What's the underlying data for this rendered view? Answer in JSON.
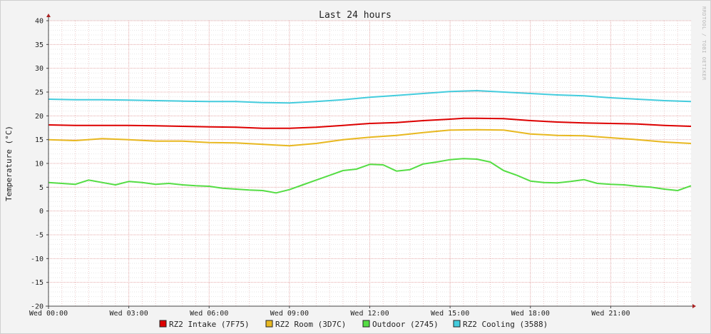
{
  "chart_data": {
    "type": "line",
    "title": "Last 24 hours",
    "ylabel": "Temperature (°C)",
    "xlabel": "",
    "ylim": [
      -20,
      40
    ],
    "yticks": [
      40,
      35,
      30,
      25,
      20,
      15,
      10,
      5,
      0,
      -5,
      -10,
      -15,
      -20
    ],
    "xlim": [
      0,
      24
    ],
    "xtick_positions": [
      0,
      3,
      6,
      9,
      12,
      15,
      18,
      21
    ],
    "xtick_labels": [
      "Wed 00:00",
      "Wed 03:00",
      "Wed 06:00",
      "Wed 09:00",
      "Wed 12:00",
      "Wed 15:00",
      "Wed 18:00",
      "Wed 21:00"
    ],
    "grid": true,
    "legend_position": "bottom",
    "watermark": "RRDTOOL / TOBI OETIKER",
    "series": [
      {
        "name": "RZ2 Intake (7F75)",
        "color": "#dd0000",
        "x": [
          0,
          1,
          2,
          3,
          4,
          5,
          6,
          7,
          8,
          9,
          10,
          11,
          12,
          13,
          14,
          15,
          15.5,
          16,
          17,
          18,
          19,
          20,
          21,
          22,
          23,
          24
        ],
        "values": [
          18.1,
          18.0,
          18.0,
          18.0,
          17.9,
          17.8,
          17.7,
          17.6,
          17.4,
          17.4,
          17.6,
          18.0,
          18.4,
          18.6,
          19.0,
          19.3,
          19.5,
          19.5,
          19.4,
          19.0,
          18.7,
          18.5,
          18.4,
          18.3,
          18.0,
          17.8
        ]
      },
      {
        "name": "RZ2 Room (3D7C)",
        "color": "#e8b820",
        "x": [
          0,
          1,
          2,
          3,
          4,
          5,
          6,
          7,
          8,
          9,
          10,
          11,
          12,
          13,
          14,
          15,
          16,
          17,
          18,
          19,
          20,
          21,
          22,
          23,
          24
        ],
        "values": [
          15.0,
          14.8,
          15.2,
          15.0,
          14.7,
          14.7,
          14.4,
          14.3,
          14.0,
          13.7,
          14.2,
          15.0,
          15.5,
          15.9,
          16.5,
          17.0,
          17.1,
          17.0,
          16.2,
          15.9,
          15.8,
          15.4,
          15.0,
          14.5,
          14.2
        ]
      },
      {
        "name": "Outdoor (2745)",
        "color": "#55dd44",
        "x": [
          0,
          0.5,
          1,
          1.5,
          2,
          2.5,
          3,
          3.5,
          4,
          4.5,
          5,
          5.5,
          6,
          6.5,
          7,
          7.5,
          8,
          8.5,
          9,
          9.5,
          10,
          10.5,
          11,
          11.5,
          12,
          12.5,
          13,
          13.5,
          14,
          14.5,
          15,
          15.5,
          16,
          16.5,
          17,
          17.5,
          18,
          18.5,
          19,
          19.5,
          20,
          20.5,
          21,
          21.5,
          22,
          22.5,
          23,
          23.5,
          24
        ],
        "values": [
          6.0,
          5.8,
          5.6,
          6.5,
          6.0,
          5.5,
          6.2,
          6.0,
          5.6,
          5.8,
          5.5,
          5.3,
          5.2,
          4.8,
          4.6,
          4.4,
          4.3,
          3.8,
          4.5,
          5.5,
          6.5,
          7.5,
          8.5,
          8.8,
          9.8,
          9.7,
          8.4,
          8.7,
          9.9,
          10.3,
          10.8,
          11.0,
          10.9,
          10.3,
          8.5,
          7.5,
          6.3,
          6.0,
          5.9,
          6.2,
          6.6,
          5.8,
          5.6,
          5.5,
          5.2,
          5.0,
          4.6,
          4.3,
          5.3
        ]
      },
      {
        "name": "RZ2 Cooling (3588)",
        "color": "#44ccdd",
        "x": [
          0,
          1,
          2,
          3,
          4,
          5,
          6,
          7,
          8,
          9,
          10,
          11,
          12,
          13,
          14,
          15,
          16,
          17,
          18,
          19,
          20,
          21,
          22,
          23,
          24
        ],
        "values": [
          23.5,
          23.4,
          23.4,
          23.3,
          23.2,
          23.1,
          23.0,
          23.0,
          22.8,
          22.7,
          23.0,
          23.4,
          23.9,
          24.3,
          24.7,
          25.1,
          25.3,
          25.0,
          24.7,
          24.4,
          24.2,
          23.8,
          23.5,
          23.2,
          23.0
        ]
      }
    ]
  }
}
